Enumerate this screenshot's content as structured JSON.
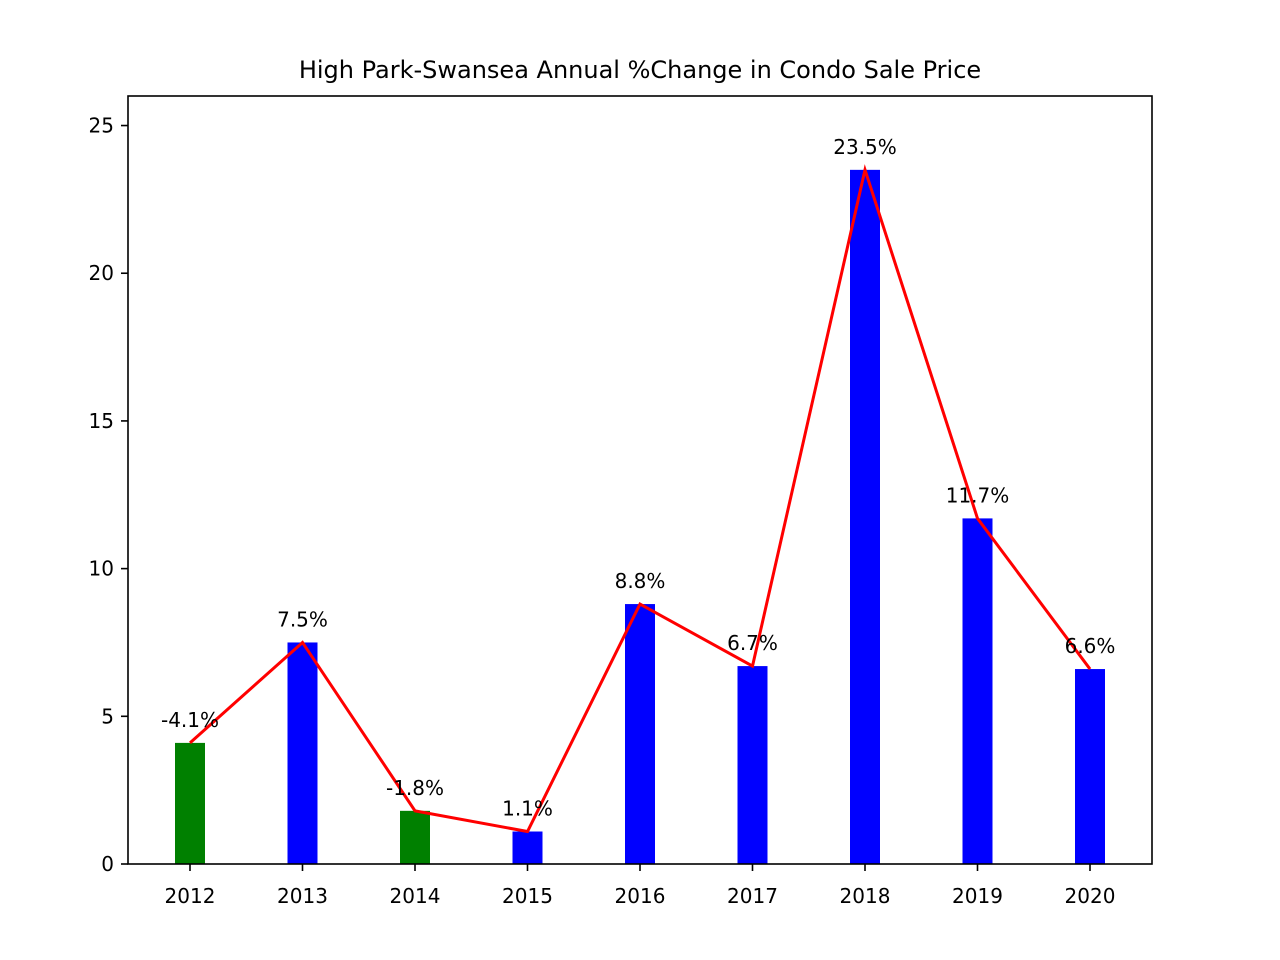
{
  "chart_data": {
    "type": "bar",
    "title": "High Park-Swansea Annual %Change in Condo Sale Price",
    "xlabel": "",
    "ylabel": "",
    "categories": [
      "2012",
      "2013",
      "2014",
      "2015",
      "2016",
      "2017",
      "2018",
      "2019",
      "2020"
    ],
    "values": [
      4.1,
      7.5,
      1.8,
      1.1,
      8.8,
      6.7,
      23.5,
      11.7,
      6.6
    ],
    "bar_colors": [
      "#008000",
      "#0000ff",
      "#008000",
      "#0000ff",
      "#0000ff",
      "#0000ff",
      "#0000ff",
      "#0000ff",
      "#0000ff"
    ],
    "data_labels": [
      "-4.1%",
      "7.5%",
      "-1.8%",
      "1.1%",
      "8.8%",
      "6.7%",
      "23.5%",
      "11.7%",
      "6.6%"
    ],
    "line_series": {
      "values": [
        4.1,
        7.5,
        1.8,
        1.1,
        8.8,
        6.7,
        23.5,
        11.7,
        6.6
      ],
      "color": "#ff0000"
    },
    "ylim": [
      0,
      26
    ],
    "yticks": [
      0,
      5,
      10,
      15,
      20,
      25
    ],
    "ytick_labels": [
      "0",
      "5",
      "10",
      "15",
      "20",
      "25"
    ],
    "grid": false,
    "legend": "none"
  }
}
